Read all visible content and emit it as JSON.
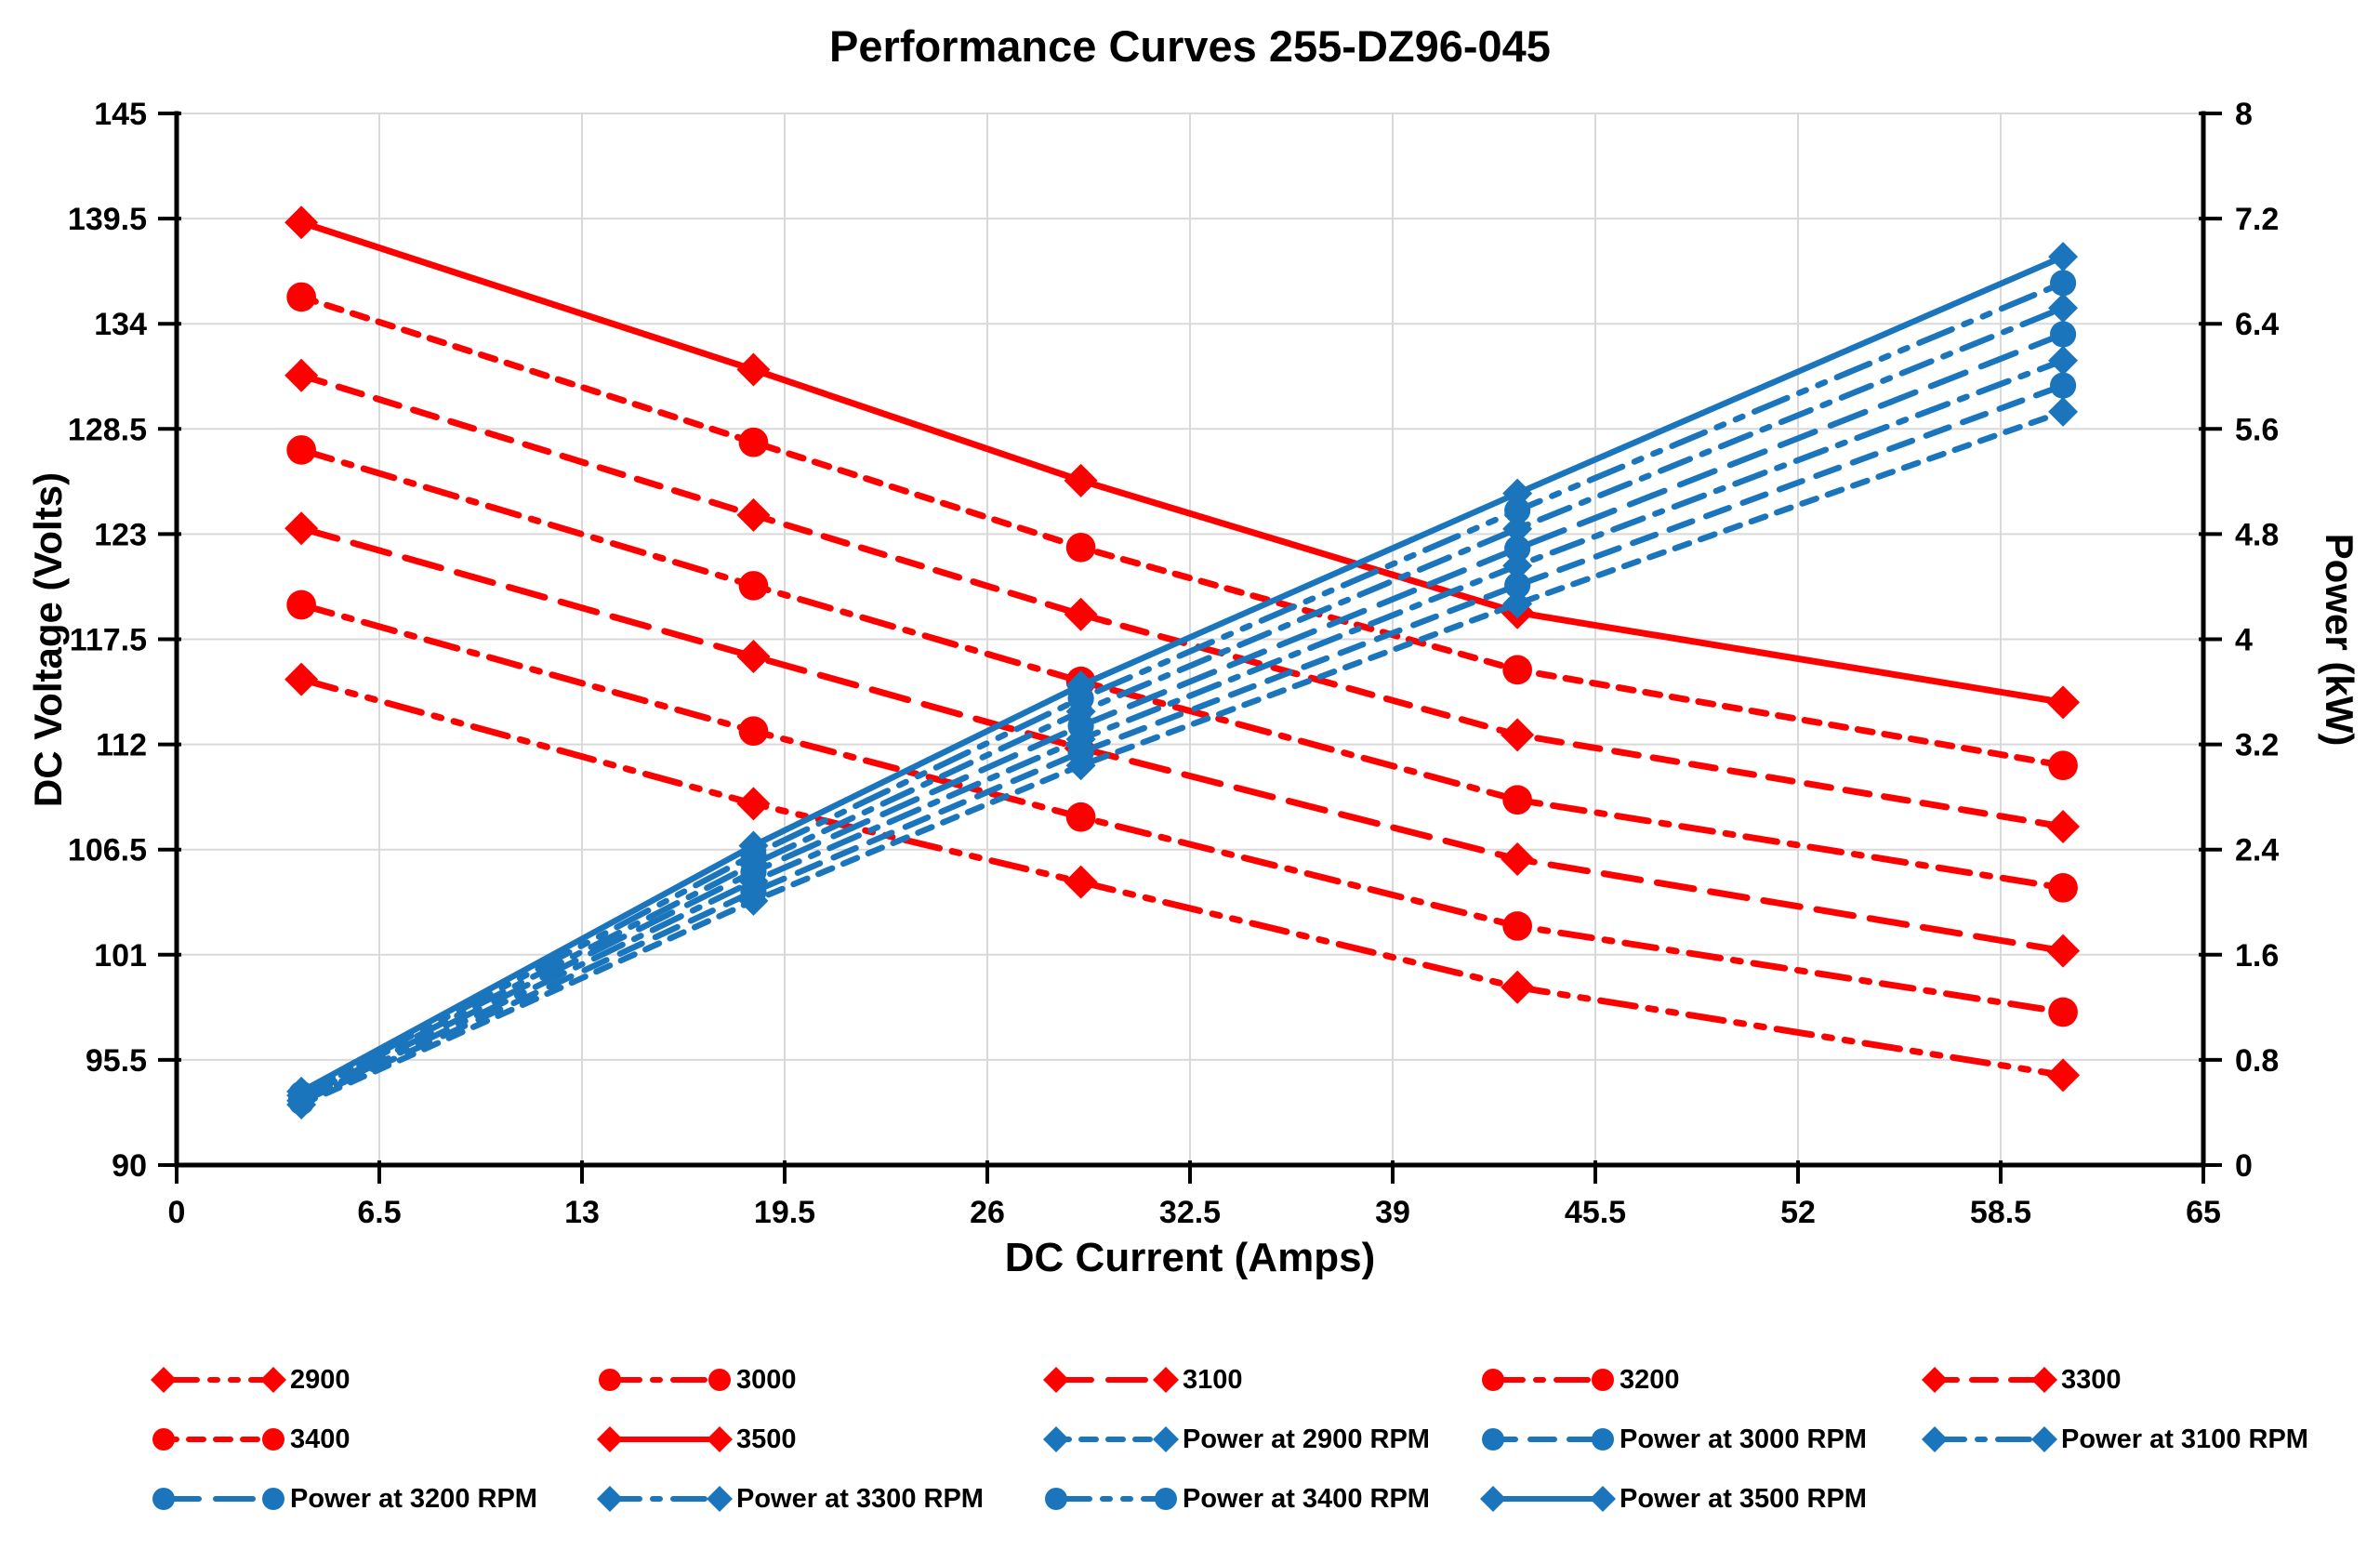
{
  "chart_data": {
    "type": "line",
    "title": "Performance Curves 255-DZ96-045",
    "x_axis": {
      "label": "DC Current (Amps)",
      "min": 0,
      "max": 65,
      "ticks": [
        "0",
        "6.5",
        "13",
        "19.5",
        "26",
        "32.5",
        "39",
        "45.5",
        "52",
        "58.5",
        "65"
      ]
    },
    "y_left": {
      "label": "DC Voltage (Volts)",
      "min": 90,
      "max": 145,
      "ticks": [
        "90",
        "95.5",
        "101",
        "106.5",
        "112",
        "117.5",
        "123",
        "128.5",
        "134",
        "139.5",
        "145"
      ]
    },
    "y_right": {
      "label": "Power (kW)",
      "min": 0,
      "max": 8,
      "ticks": [
        "0",
        "0.8",
        "1.6",
        "2.4",
        "3.2",
        "4",
        "4.8",
        "5.6",
        "6.4",
        "7.2",
        "8"
      ]
    },
    "grid": true,
    "legend_position": "bottom",
    "colors": {
      "voltage": "#FF0000",
      "power": "#1B75BC",
      "gridline": "#D9D9D9",
      "axis": "#000000"
    },
    "x": [
      4,
      18.5,
      29,
      43,
      60.5
    ],
    "voltage_series": [
      {
        "label": "2900",
        "rpm": 2900,
        "marker": "diamond",
        "line_style": "dash-dot-dot",
        "values": [
          115.4,
          108.9,
          104.8,
          99.3,
          94.7
        ]
      },
      {
        "label": "3000",
        "rpm": 3000,
        "marker": "circle",
        "line_style": "dash-dot",
        "values": [
          119.3,
          112.7,
          108.2,
          102.5,
          98.0
        ]
      },
      {
        "label": "3100",
        "rpm": 3100,
        "marker": "diamond",
        "line_style": "long-dash",
        "values": [
          123.3,
          116.6,
          111.8,
          106.0,
          101.2
        ]
      },
      {
        "label": "3200",
        "rpm": 3200,
        "marker": "circle",
        "line_style": "dash-dot",
        "values": [
          127.4,
          120.3,
          115.3,
          109.1,
          104.5
        ]
      },
      {
        "label": "3300",
        "rpm": 3300,
        "marker": "diamond",
        "line_style": "dash",
        "values": [
          131.3,
          124.0,
          118.8,
          112.5,
          107.7
        ]
      },
      {
        "label": "3400",
        "rpm": 3400,
        "marker": "circle",
        "line_style": "short-dash",
        "values": [
          135.4,
          127.8,
          122.3,
          115.9,
          110.9
        ]
      },
      {
        "label": "3500",
        "rpm": 3500,
        "marker": "diamond",
        "line_style": "solid",
        "values": [
          139.3,
          131.6,
          125.8,
          118.9,
          114.2
        ]
      }
    ],
    "power_series": [
      {
        "label": "Power at 2900 RPM",
        "rpm": 2900,
        "marker": "diamond",
        "line_style": "short-dash",
        "values": [
          0.46,
          2.01,
          3.04,
          4.27,
          5.73
        ]
      },
      {
        "label": "Power at 3000 RPM",
        "rpm": 3000,
        "marker": "circle",
        "line_style": "dash",
        "values": [
          0.48,
          2.08,
          3.14,
          4.41,
          5.93
        ]
      },
      {
        "label": "Power at 3100 RPM",
        "rpm": 3100,
        "marker": "diamond",
        "line_style": "dash-dot",
        "values": [
          0.49,
          2.16,
          3.24,
          4.56,
          6.12
        ]
      },
      {
        "label": "Power at 3200 RPM",
        "rpm": 3200,
        "marker": "circle",
        "line_style": "long-dash",
        "values": [
          0.51,
          2.23,
          3.34,
          4.69,
          6.32
        ]
      },
      {
        "label": "Power at 3300 RPM",
        "rpm": 3300,
        "marker": "diamond",
        "line_style": "dash-dot",
        "values": [
          0.53,
          2.29,
          3.45,
          4.84,
          6.52
        ]
      },
      {
        "label": "Power at 3400 RPM",
        "rpm": 3400,
        "marker": "circle",
        "line_style": "dash-dot-dot",
        "values": [
          0.54,
          2.36,
          3.55,
          4.98,
          6.71
        ]
      },
      {
        "label": "Power at 3500 RPM",
        "rpm": 3500,
        "marker": "diamond",
        "line_style": "solid",
        "values": [
          0.56,
          2.43,
          3.65,
          5.11,
          6.91
        ]
      }
    ]
  }
}
